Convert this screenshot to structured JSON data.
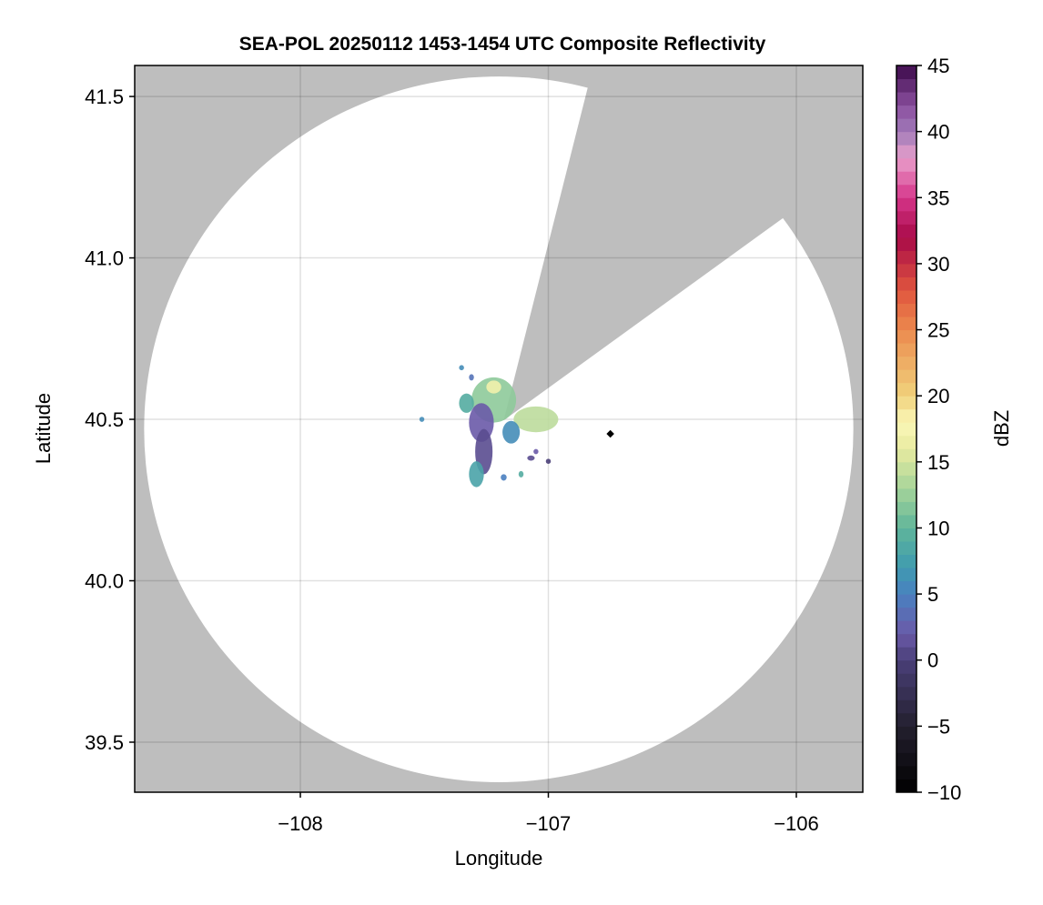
{
  "chart_data": {
    "type": "heatmap",
    "title": "SEA-POL 20250112 1453-1454 UTC Composite Reflectivity",
    "xlabel": "Longitude",
    "ylabel": "Latitude",
    "xlim": [
      -108.668,
      -105.732
    ],
    "ylim": [
      39.345,
      41.596
    ],
    "xticks": [
      -108,
      -107,
      -106
    ],
    "xtick_labels": [
      "−108",
      "−107",
      "−106"
    ],
    "yticks": [
      39.5,
      40.0,
      40.5,
      41.0,
      41.5
    ],
    "ytick_labels": [
      "39.5",
      "40.0",
      "40.5",
      "41.0",
      "41.5"
    ],
    "grid": true,
    "no_data_color": "#bebebe",
    "radar": {
      "center_lon": -107.2,
      "center_lat": 40.469,
      "range_lon_deg": 1.43,
      "range_lat_deg": 1.093,
      "blocked_sector": {
        "apex": [
          -107.18,
          40.497
        ],
        "edge1": [
          -106.842,
          41.525
        ],
        "edge2": [
          -106.06,
          41.12
        ]
      }
    },
    "marker": {
      "lon": -106.75,
      "lat": 40.455
    },
    "echoes": [
      {
        "lon": -107.22,
        "lat": 40.56,
        "rlon": 0.09,
        "rlat": 0.07,
        "dbz": 12
      },
      {
        "lon": -107.27,
        "lat": 40.49,
        "rlon": 0.05,
        "rlat": 0.06,
        "dbz": 2
      },
      {
        "lon": -107.26,
        "lat": 40.4,
        "rlon": 0.035,
        "rlat": 0.07,
        "dbz": 1
      },
      {
        "lon": -107.29,
        "lat": 40.33,
        "rlon": 0.03,
        "rlat": 0.04,
        "dbz": 8
      },
      {
        "lon": -107.05,
        "lat": 40.5,
        "rlon": 0.09,
        "rlat": 0.04,
        "dbz": 14
      },
      {
        "lon": -107.15,
        "lat": 40.46,
        "rlon": 0.035,
        "rlat": 0.035,
        "dbz": 6
      },
      {
        "lon": -107.22,
        "lat": 40.6,
        "rlon": 0.03,
        "rlat": 0.02,
        "dbz": 17
      },
      {
        "lon": -107.33,
        "lat": 40.55,
        "rlon": 0.03,
        "rlat": 0.03,
        "dbz": 9
      },
      {
        "lon": -107.51,
        "lat": 40.5,
        "rlon": 0.01,
        "rlat": 0.008,
        "dbz": 6
      },
      {
        "lon": -107.07,
        "lat": 40.38,
        "rlon": 0.015,
        "rlat": 0.008,
        "dbz": 1
      },
      {
        "lon": -107.05,
        "lat": 40.4,
        "rlon": 0.01,
        "rlat": 0.008,
        "dbz": 2
      },
      {
        "lon": -107.18,
        "lat": 40.32,
        "rlon": 0.012,
        "rlat": 0.01,
        "dbz": 5
      },
      {
        "lon": -107.11,
        "lat": 40.33,
        "rlon": 0.01,
        "rlat": 0.01,
        "dbz": 9
      },
      {
        "lon": -107.0,
        "lat": 40.37,
        "rlon": 0.01,
        "rlat": 0.008,
        "dbz": 0
      },
      {
        "lon": -107.35,
        "lat": 40.66,
        "rlon": 0.01,
        "rlat": 0.008,
        "dbz": 6
      },
      {
        "lon": -107.31,
        "lat": 40.63,
        "rlon": 0.01,
        "rlat": 0.01,
        "dbz": 4
      }
    ],
    "colorbar": {
      "label": "dBZ",
      "range": [
        -10,
        45
      ],
      "ticks": [
        -10,
        -5,
        0,
        5,
        10,
        15,
        20,
        25,
        30,
        35,
        40,
        45
      ],
      "tick_labels": [
        "−10",
        "−5",
        "0",
        "5",
        "10",
        "15",
        "20",
        "25",
        "30",
        "35",
        "40",
        "45"
      ],
      "levels": 55,
      "anchors": [
        [
          -10,
          "#000000"
        ],
        [
          -5,
          "#23202f"
        ],
        [
          0,
          "#4a3f78"
        ],
        [
          2,
          "#6a5aa8"
        ],
        [
          5,
          "#4a80c0"
        ],
        [
          7,
          "#3f9ab0"
        ],
        [
          10,
          "#5fb59a"
        ],
        [
          13,
          "#a6d49a"
        ],
        [
          16,
          "#e8eba0"
        ],
        [
          18,
          "#fbf7b8"
        ],
        [
          20,
          "#f0d27c"
        ],
        [
          25,
          "#ec8a4e"
        ],
        [
          28,
          "#e0553e"
        ],
        [
          32,
          "#a80a48"
        ],
        [
          35,
          "#d6358a"
        ],
        [
          38,
          "#e9a0cc"
        ],
        [
          40,
          "#a07ab8"
        ],
        [
          42,
          "#8a4e9e"
        ],
        [
          45,
          "#3c0a4a"
        ]
      ]
    }
  }
}
